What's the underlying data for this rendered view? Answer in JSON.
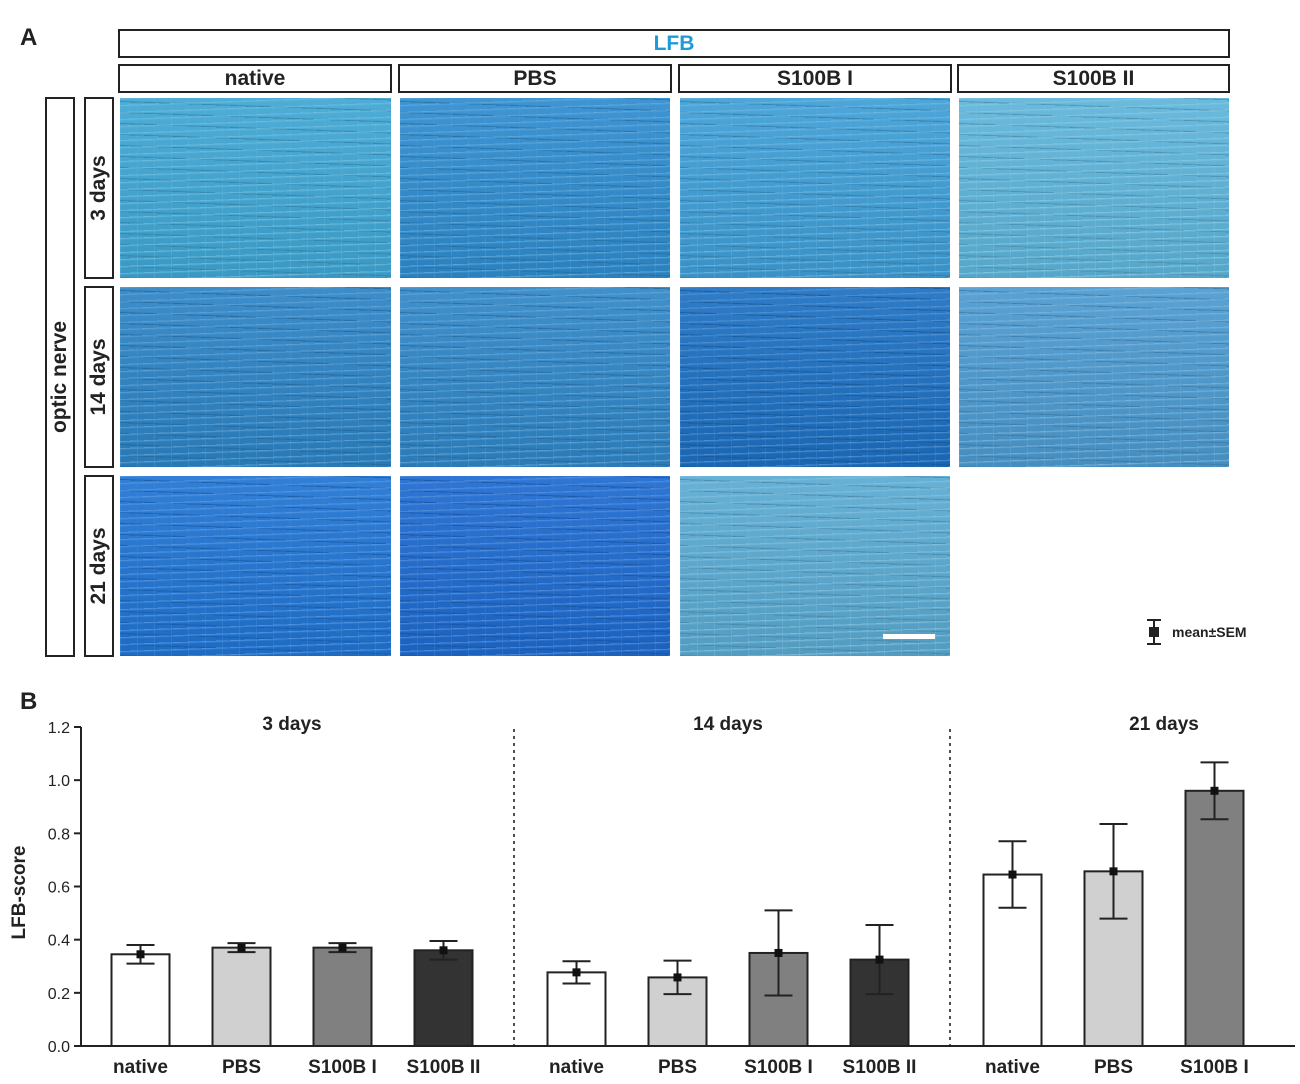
{
  "figure": {
    "panel_a_label": "A",
    "panel_b_label": "B",
    "stain_header": "LFB",
    "stain_color": "#1E9BD7",
    "column_headers": [
      "native",
      "PBS",
      "S100B I",
      "S100B II"
    ],
    "tissue_label": "optic nerve",
    "row_labels": [
      "3 days",
      "14 days",
      "21 days"
    ],
    "missing_cell": "21 days / S100B II (no image)",
    "micrograph_tints": [
      [
        "#3FA6D4",
        "#2E8CCF",
        "#3E9ED6",
        "#5DB4DA"
      ],
      [
        "#2C83C6",
        "#2F86C8",
        "#1C6FC2",
        "#4C9AD0"
      ],
      [
        "#1F74D4",
        "#1D6AD0",
        "#5AAAD2",
        null
      ]
    ],
    "legend_label": "mean±SEM"
  },
  "chart_data": {
    "type": "bar",
    "ylabel": "LFB-score",
    "ylim": [
      0,
      1.2
    ],
    "yticks": [
      "0.0",
      "0.2",
      "0.4",
      "0.6",
      "0.8",
      "1.0",
      "1.2"
    ],
    "groups": [
      {
        "label": "3 days",
        "categories": [
          "native",
          "PBS",
          "S100B I",
          "S100B II"
        ],
        "values": [
          0.345,
          0.37,
          0.37,
          0.36
        ],
        "errors": [
          0.035,
          0.017,
          0.017,
          0.035
        ],
        "colors": [
          "#FFFFFF",
          "#D0D0D0",
          "#808080",
          "#333333"
        ]
      },
      {
        "label": "14 days",
        "categories": [
          "native",
          "PBS",
          "S100B I",
          "S100B II"
        ],
        "values": [
          0.277,
          0.258,
          0.35,
          0.325
        ],
        "errors": [
          0.042,
          0.063,
          0.16,
          0.13
        ],
        "colors": [
          "#FFFFFF",
          "#D0D0D0",
          "#808080",
          "#333333"
        ]
      },
      {
        "label": "21 days",
        "categories": [
          "native",
          "PBS",
          "S100B I"
        ],
        "values": [
          0.645,
          0.657,
          0.96
        ],
        "errors": [
          0.125,
          0.178,
          0.107
        ],
        "colors": [
          "#FFFFFF",
          "#D0D0D0",
          "#808080"
        ]
      }
    ],
    "group_separators": "dotted",
    "error_bar_color": "#222222"
  }
}
